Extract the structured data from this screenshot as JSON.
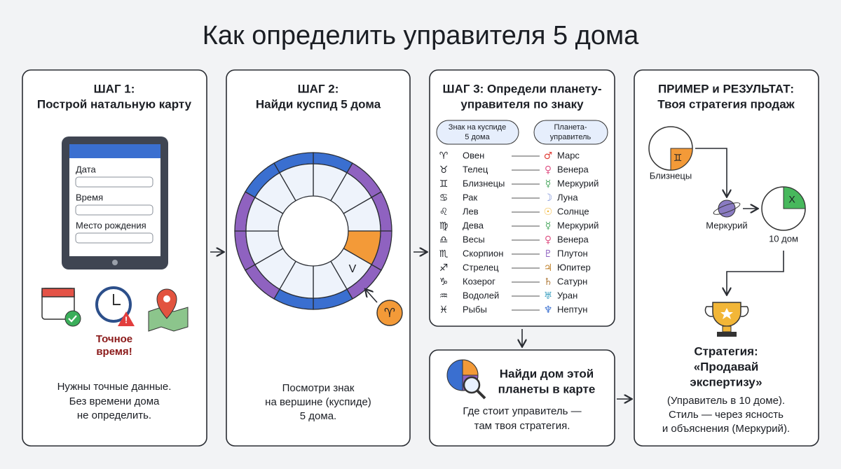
{
  "title": "Как определить управителя 5 дома",
  "step1": {
    "heading": [
      "ШАГ 1:",
      "Построй натальную карту"
    ],
    "fields": [
      "Дата",
      "Время",
      "Место рождения"
    ],
    "warning": [
      "Точное",
      "время!"
    ],
    "note": [
      "Нужны точные данные.",
      "Без времени дома",
      "не определить."
    ]
  },
  "step2": {
    "heading": [
      "ШАГ 2:",
      "Найди куспид 5 дома"
    ],
    "house_label": "V",
    "sign_symbol": "♈",
    "note": [
      "Посмотри знак",
      "на вершине (куспиде)",
      "5 дома."
    ]
  },
  "step3": {
    "heading": [
      "ШАГ 3: Определи планету-",
      "управителя по знаку"
    ],
    "sign_header": [
      "Знак на куспиде",
      "5 дома"
    ],
    "planet_header": [
      "Планета-",
      "управитель"
    ],
    "rows": [
      {
        "sign_symbol": "♈",
        "sign": "Овен",
        "planet_symbol": "♂",
        "planet": "Марс"
      },
      {
        "sign_symbol": "♉",
        "sign": "Телец",
        "planet_symbol": "♀",
        "planet": "Венера"
      },
      {
        "sign_symbol": "♊",
        "sign": "Близнецы",
        "planet_symbol": "☿",
        "planet": "Меркурий"
      },
      {
        "sign_symbol": "♋",
        "sign": "Рак",
        "planet_symbol": "☽",
        "planet": "Луна"
      },
      {
        "sign_symbol": "♌",
        "sign": "Лев",
        "planet_symbol": "☉",
        "planet": "Солнце"
      },
      {
        "sign_symbol": "♍",
        "sign": "Дева",
        "planet_symbol": "☿",
        "planet": "Меркурий"
      },
      {
        "sign_symbol": "♎",
        "sign": "Весы",
        "planet_symbol": "♀",
        "planet": "Венера"
      },
      {
        "sign_symbol": "♏",
        "sign": "Скорпион",
        "planet_symbol": "♇",
        "planet": "Плутон"
      },
      {
        "sign_symbol": "♐",
        "sign": "Стрелец",
        "planet_symbol": "♃",
        "planet": "Юпитер"
      },
      {
        "sign_symbol": "♑",
        "sign": "Козерог",
        "planet_symbol": "♄",
        "planet": "Сатурн"
      },
      {
        "sign_symbol": "♒",
        "sign": "Водолей",
        "planet_symbol": "♅",
        "planet": "Уран"
      },
      {
        "sign_symbol": "♓",
        "sign": "Рыбы",
        "planet_symbol": "♆",
        "planet": "Нептун"
      }
    ]
  },
  "find_house": {
    "title": [
      "Найди дом этой",
      "планеты в карте"
    ],
    "note": [
      "Где стоит управитель —",
      "там твоя стратегия."
    ]
  },
  "step4": {
    "heading": [
      "ПРИМЕР и РЕЗУЛЬТАТ:",
      "Твоя стратегия продаж"
    ],
    "sign_symbol": "♊",
    "sign": "Близнецы",
    "planet": "Меркурий",
    "house_symbol": "X",
    "house": "10 дом",
    "strategy": [
      "Стратегия:",
      "«Продавай",
      "экспертизу»"
    ],
    "note": [
      "(Управитель в 10 доме).",
      "Стиль — через ясность",
      "и объяснения (Меркурий)."
    ]
  }
}
